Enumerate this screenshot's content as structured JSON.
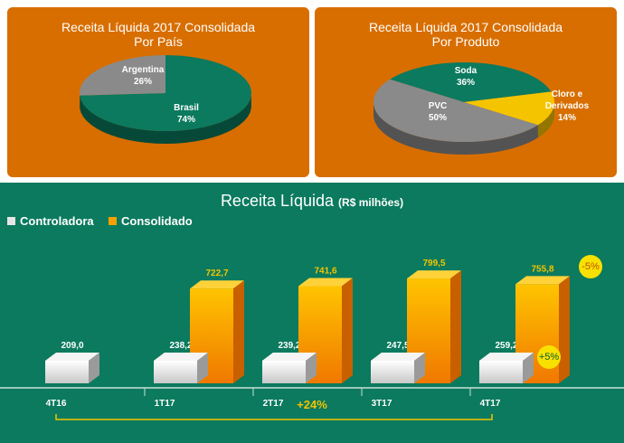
{
  "pie_country": {
    "title_line1": "Receita Líquida 2017 Consolidada",
    "title_line2": "Por País",
    "slices": [
      {
        "label": "Brasil",
        "pct": "74%",
        "value": 74,
        "color": "#0b7a5e"
      },
      {
        "label": "Argentina",
        "pct": "26%",
        "value": 26,
        "color": "#8a8a8a"
      }
    ]
  },
  "pie_product": {
    "title_line1": "Receita Líquida 2017 Consolidada",
    "title_line2": "Por Produto",
    "slices": [
      {
        "label": "Soda",
        "pct": "36%",
        "value": 36,
        "color": "#0b7a5e"
      },
      {
        "label": "Cloro e Derivados",
        "label_line1": "Cloro e",
        "label_line2": "Derivados",
        "pct": "14%",
        "value": 14,
        "color": "#f5c400"
      },
      {
        "label": "PVC",
        "pct": "50%",
        "value": 50,
        "color": "#8a8a8a"
      }
    ]
  },
  "bar_chart": {
    "title": "Receita Líquida",
    "unit": "(R$ milhões)",
    "legend_controladora": "Controladora",
    "legend_consolidado": "Consolidado",
    "badge_consolidado": "-5%",
    "badge_controladora": "+5%",
    "growth_label": "+24%"
  },
  "chart_data": {
    "type": "bar",
    "title": "Receita Líquida",
    "ylabel": "(R$ milhões)",
    "categories": [
      "4T16",
      "1T17",
      "2T17",
      "3T17",
      "4T17"
    ],
    "series": [
      {
        "name": "Controladora",
        "values": [
          209.0,
          238.2,
          239.2,
          247.5,
          259.2
        ],
        "labels": [
          "209,0",
          "238,2",
          "239,2",
          "247,5",
          "259,2"
        ]
      },
      {
        "name": "Consolidado",
        "values": [
          null,
          722.7,
          741.6,
          799.5,
          755.8
        ],
        "labels": [
          "",
          "722,7",
          "741,6",
          "799,5",
          "755,8"
        ]
      }
    ]
  },
  "colors": {
    "orange_panel": "#d86e00",
    "green_bg": "#0b7a5e",
    "consolidado": "#f7a000",
    "controladora": "#e6e6e6",
    "label_yellow": "#f5c400"
  }
}
